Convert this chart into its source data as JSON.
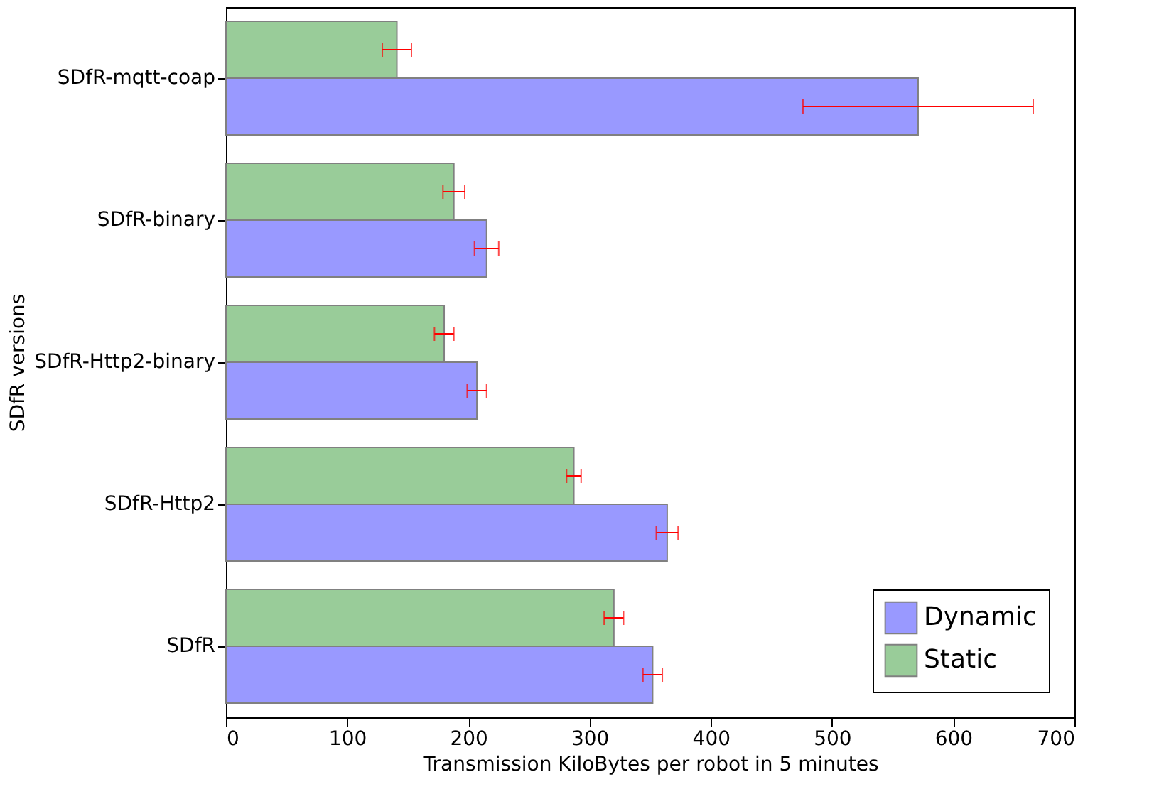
{
  "chart_data": {
    "type": "bar",
    "orientation": "horizontal",
    "xlabel": "Transmission KiloBytes per robot in 5 minutes",
    "ylabel": "SDfR versions",
    "categories": [
      "SDfR-mqtt-coap",
      "SDfR-binary",
      "SDfR-Http2-binary",
      "SDfR-Http2",
      "SDfR"
    ],
    "series": [
      {
        "name": "Dynamic",
        "color": "#9999ff",
        "values": [
          571,
          215,
          207,
          364,
          352
        ],
        "errors": [
          95,
          10,
          8,
          9,
          8
        ]
      },
      {
        "name": "Static",
        "color": "#99cc99",
        "values": [
          141,
          188,
          180,
          287,
          320
        ],
        "errors": [
          12,
          9,
          8,
          6,
          8
        ]
      }
    ],
    "xlim": [
      0,
      700
    ],
    "xticks": [
      0,
      100,
      200,
      300,
      400,
      500,
      600,
      700
    ],
    "grid": false,
    "legend": "bottom right"
  }
}
